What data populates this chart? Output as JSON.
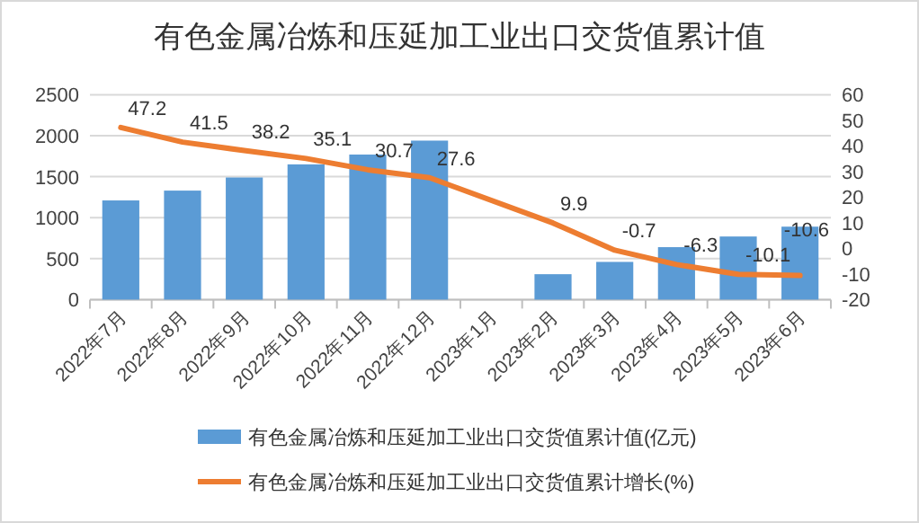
{
  "chart_data": {
    "type": "bar",
    "title": "有色金属冶炼和压延加工业出口交货值累计值",
    "categories": [
      "2022年7月",
      "2022年8月",
      "2022年9月",
      "2022年10月",
      "2022年11月",
      "2022年12月",
      "2023年1月",
      "2023年2月",
      "2023年3月",
      "2023年4月",
      "2023年5月",
      "2023年6月"
    ],
    "series": [
      {
        "name": "有色金属冶炼和压延加工业出口交货值累计值(亿元)",
        "color": "#5b9bd5",
        "values": [
          1210,
          1330,
          1490,
          1650,
          1770,
          1940,
          null,
          310,
          460,
          640,
          770,
          890
        ]
      },
      {
        "name": "有色金属冶炼和压延加工业出口交货值累计增长(%)",
        "type": "line",
        "axis": "y2",
        "color": "#ed7d31",
        "values": [
          47.2,
          41.5,
          38.2,
          35.1,
          30.7,
          27.6,
          null,
          9.9,
          -0.7,
          -6.3,
          -10.1,
          -10.6
        ],
        "value_labels": [
          "47.2",
          "41.5",
          "38.2",
          "35.1",
          "30.7",
          "27.6",
          null,
          "9.9",
          "-0.7",
          "-6.3",
          "-10.1",
          "-10.6"
        ]
      }
    ],
    "ylim": [
      0,
      2500
    ],
    "yticks": [
      0,
      500,
      1000,
      1500,
      2000,
      2500
    ],
    "y2lim": [
      -20,
      60
    ],
    "y2ticks": [
      -20,
      -10,
      0,
      10,
      20,
      30,
      40,
      50,
      60
    ],
    "grid": "y",
    "legend": "bottom"
  }
}
